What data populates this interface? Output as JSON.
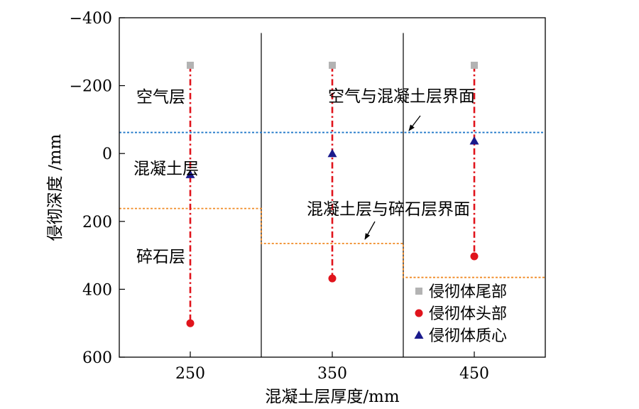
{
  "chart_data": {
    "type": "scatter",
    "xlabel": "混凝土层厚度/mm",
    "ylabel": "侵彻深度 /mm",
    "x_ticks": [
      "250",
      "350",
      "450"
    ],
    "y_ticks": [
      "−400",
      "−200",
      "0",
      "200",
      "400",
      "600"
    ],
    "y_tick_values": [
      -400,
      -200,
      0,
      200,
      400,
      600
    ],
    "ylim": [
      -400,
      600
    ],
    "y_inverted": true,
    "xlim": [
      200,
      500
    ],
    "groups": [
      250,
      350,
      450
    ],
    "series": [
      {
        "name": "侵彻体尾部",
        "marker": "square",
        "color": "#b3b3b3",
        "x": [
          250,
          350,
          450
        ],
        "y": [
          -260,
          -260,
          -260
        ]
      },
      {
        "name": "侵彻体头部",
        "marker": "circle",
        "color": "#e0141c",
        "x": [
          250,
          350,
          450
        ],
        "y": [
          500,
          368,
          303
        ]
      },
      {
        "name": "侵彻体质心",
        "marker": "triangle",
        "color": "#1a1a8c",
        "x": [
          250,
          350,
          450
        ],
        "y": [
          62,
          0,
          -37
        ]
      }
    ],
    "air_concrete_interface": {
      "y": -62,
      "color": "#1f77c8"
    },
    "concrete_gravel_interface": {
      "color": "#f08a24",
      "segments": [
        {
          "x0": 200,
          "x1": 300,
          "y": 162
        },
        {
          "x0": 300,
          "x1": 400,
          "y": 265
        },
        {
          "x0": 400,
          "x1": 500,
          "y": 365
        }
      ]
    },
    "dividers_x": [
      300,
      400
    ],
    "layer_labels": [
      "空气层",
      "混凝土层",
      "碎石层"
    ],
    "annotations": [
      "空气与混凝土层界面",
      "混凝土层与碎石层界面"
    ],
    "legend_position": "bottom-right"
  }
}
